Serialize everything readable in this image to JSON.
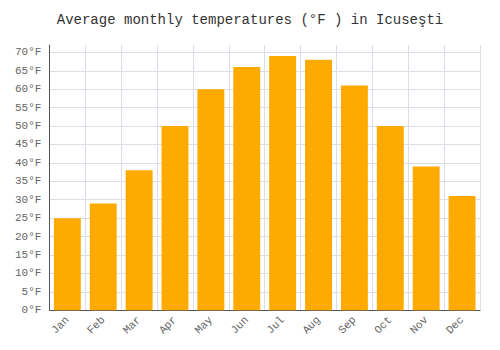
{
  "chart_data": {
    "type": "bar",
    "title": "Average monthly temperatures (°F ) in Icuseşti",
    "categories": [
      "Jan",
      "Feb",
      "Mar",
      "Apr",
      "May",
      "Jun",
      "Jul",
      "Aug",
      "Sep",
      "Oct",
      "Nov",
      "Dec"
    ],
    "values": [
      25,
      29,
      38,
      50,
      60,
      66,
      69,
      68,
      61,
      50,
      39,
      31
    ],
    "color": "#FFAA00",
    "ylim": [
      0,
      72
    ],
    "yticks": [
      {
        "value": 0,
        "label": "0°F"
      },
      {
        "value": 5,
        "label": "5°F"
      },
      {
        "value": 10,
        "label": "10°F"
      },
      {
        "value": 15,
        "label": "15°F"
      },
      {
        "value": 20,
        "label": "20°F"
      },
      {
        "value": 25,
        "label": "25°F"
      },
      {
        "value": 30,
        "label": "30°F"
      },
      {
        "value": 35,
        "label": "35°F"
      },
      {
        "value": 40,
        "label": "40°F"
      },
      {
        "value": 45,
        "label": "45°F"
      },
      {
        "value": 50,
        "label": "50°F"
      },
      {
        "value": 55,
        "label": "55°F"
      },
      {
        "value": 60,
        "label": "60°F"
      },
      {
        "value": 65,
        "label": "65°F"
      },
      {
        "value": 70,
        "label": "70°F"
      }
    ],
    "grid": true
  }
}
